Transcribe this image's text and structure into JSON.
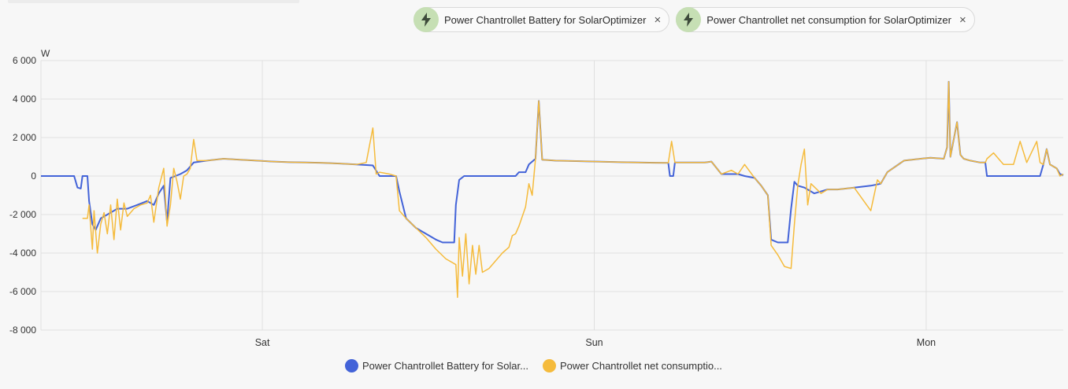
{
  "chips": [
    {
      "label": "Power Chantrollet Battery for SolarOptimizer",
      "icon": "lightning-bolt-icon"
    },
    {
      "label": "Power Chantrollet net consumption for SolarOptimizer",
      "icon": "lightning-bolt-icon"
    }
  ],
  "close_symbol": "×",
  "legend": [
    {
      "label": "Power Chantrollet Battery for Solar...",
      "color": "#4363d8"
    },
    {
      "label": "Power Chantrollet net consumptio...",
      "color": "#f5bb3c"
    }
  ],
  "chart_data": {
    "type": "line",
    "ylabel": "W",
    "ylim": [
      -8000,
      6000
    ],
    "yticks": [
      6000,
      4000,
      2000,
      0,
      -2000,
      -4000,
      -6000,
      -8000
    ],
    "ytick_labels": [
      "6 000",
      "4 000",
      "2 000",
      "0",
      "-2 000",
      "-4 000",
      "-6 000",
      "-8 000"
    ],
    "xlim": [
      0,
      3.08
    ],
    "xticks": [
      {
        "value": 0.667,
        "label": "Sat"
      },
      {
        "value": 1.667,
        "label": "Sun"
      },
      {
        "value": 2.667,
        "label": "Mon"
      }
    ],
    "x_units": "days from Friday 00:00",
    "grid": true,
    "series": [
      {
        "name": "Power Chantrollet Battery for SolarOptimizer",
        "color": "#4363d8",
        "points": [
          [
            0.0,
            0
          ],
          [
            0.1,
            0
          ],
          [
            0.11,
            -600
          ],
          [
            0.12,
            -650
          ],
          [
            0.125,
            0
          ],
          [
            0.14,
            0
          ],
          [
            0.145,
            -1300
          ],
          [
            0.155,
            -2500
          ],
          [
            0.165,
            -2800
          ],
          [
            0.18,
            -2200
          ],
          [
            0.2,
            -2000
          ],
          [
            0.23,
            -1700
          ],
          [
            0.26,
            -1700
          ],
          [
            0.29,
            -1500
          ],
          [
            0.32,
            -1300
          ],
          [
            0.34,
            -1500
          ],
          [
            0.355,
            -900
          ],
          [
            0.37,
            -500
          ],
          [
            0.38,
            -2400
          ],
          [
            0.39,
            -100
          ],
          [
            0.42,
            100
          ],
          [
            0.44,
            300
          ],
          [
            0.46,
            700
          ],
          [
            0.5,
            800
          ],
          [
            0.55,
            900
          ],
          [
            0.6,
            850
          ],
          [
            0.65,
            800
          ],
          [
            0.7,
            750
          ],
          [
            0.75,
            720
          ],
          [
            0.8,
            700
          ],
          [
            0.85,
            680
          ],
          [
            0.9,
            650
          ],
          [
            0.95,
            600
          ],
          [
            1.0,
            550
          ],
          [
            1.02,
            0
          ],
          [
            1.07,
            0
          ],
          [
            1.08,
            -800
          ],
          [
            1.1,
            -2200
          ],
          [
            1.13,
            -2700
          ],
          [
            1.16,
            -3000
          ],
          [
            1.19,
            -3300
          ],
          [
            1.21,
            -3450
          ],
          [
            1.245,
            -3450
          ],
          [
            1.25,
            -1500
          ],
          [
            1.26,
            -200
          ],
          [
            1.275,
            0
          ],
          [
            1.4,
            0
          ],
          [
            1.43,
            0
          ],
          [
            1.44,
            200
          ],
          [
            1.46,
            200
          ],
          [
            1.47,
            600
          ],
          [
            1.49,
            900
          ],
          [
            1.5,
            3900
          ],
          [
            1.51,
            850
          ],
          [
            1.55,
            800
          ],
          [
            1.6,
            780
          ],
          [
            1.65,
            760
          ],
          [
            1.7,
            740
          ],
          [
            1.75,
            720
          ],
          [
            1.8,
            700
          ],
          [
            1.85,
            690
          ],
          [
            1.89,
            680
          ],
          [
            1.895,
            0
          ],
          [
            1.905,
            0
          ],
          [
            1.91,
            700
          ],
          [
            1.95,
            700
          ],
          [
            2.0,
            700
          ],
          [
            2.02,
            750
          ],
          [
            2.05,
            100
          ],
          [
            2.1,
            100
          ],
          [
            2.12,
            0
          ],
          [
            2.15,
            -100
          ],
          [
            2.17,
            -500
          ],
          [
            2.19,
            -1000
          ],
          [
            2.2,
            -3300
          ],
          [
            2.22,
            -3450
          ],
          [
            2.25,
            -3450
          ],
          [
            2.26,
            -1700
          ],
          [
            2.27,
            -300
          ],
          [
            2.28,
            -500
          ],
          [
            2.3,
            -600
          ],
          [
            2.33,
            -900
          ],
          [
            2.37,
            -700
          ],
          [
            2.4,
            -700
          ],
          [
            2.45,
            -600
          ],
          [
            2.5,
            -500
          ],
          [
            2.53,
            -400
          ],
          [
            2.55,
            200
          ],
          [
            2.6,
            800
          ],
          [
            2.65,
            900
          ],
          [
            2.68,
            950
          ],
          [
            2.72,
            900
          ],
          [
            2.73,
            1500
          ],
          [
            2.735,
            4900
          ],
          [
            2.74,
            1000
          ],
          [
            2.76,
            2800
          ],
          [
            2.77,
            1100
          ],
          [
            2.78,
            900
          ],
          [
            2.8,
            800
          ],
          [
            2.83,
            700
          ],
          [
            2.845,
            700
          ],
          [
            2.85,
            0
          ],
          [
            2.9,
            0
          ],
          [
            2.95,
            0
          ],
          [
            3.0,
            0
          ],
          [
            3.01,
            0
          ],
          [
            3.02,
            600
          ],
          [
            3.03,
            1400
          ],
          [
            3.04,
            600
          ],
          [
            3.06,
            400
          ],
          [
            3.07,
            100
          ],
          [
            3.08,
            50
          ]
        ]
      },
      {
        "name": "Power Chantrollet net consumption for SolarOptimizer",
        "color": "#f5bb3c",
        "points": [
          [
            0.125,
            -2200
          ],
          [
            0.14,
            -2200
          ],
          [
            0.145,
            -1500
          ],
          [
            0.155,
            -3800
          ],
          [
            0.16,
            -1800
          ],
          [
            0.17,
            -4000
          ],
          [
            0.18,
            -2500
          ],
          [
            0.19,
            -1900
          ],
          [
            0.2,
            -3000
          ],
          [
            0.21,
            -1500
          ],
          [
            0.22,
            -3300
          ],
          [
            0.23,
            -1200
          ],
          [
            0.24,
            -2800
          ],
          [
            0.25,
            -1400
          ],
          [
            0.26,
            -2100
          ],
          [
            0.28,
            -1700
          ],
          [
            0.3,
            -1500
          ],
          [
            0.32,
            -1400
          ],
          [
            0.33,
            -1000
          ],
          [
            0.34,
            -2400
          ],
          [
            0.355,
            -600
          ],
          [
            0.37,
            400
          ],
          [
            0.38,
            -2600
          ],
          [
            0.39,
            -1500
          ],
          [
            0.4,
            400
          ],
          [
            0.41,
            -300
          ],
          [
            0.42,
            -1200
          ],
          [
            0.43,
            0
          ],
          [
            0.44,
            100
          ],
          [
            0.45,
            400
          ],
          [
            0.46,
            1900
          ],
          [
            0.47,
            800
          ],
          [
            0.5,
            800
          ],
          [
            0.55,
            900
          ],
          [
            0.6,
            850
          ],
          [
            0.65,
            800
          ],
          [
            0.7,
            750
          ],
          [
            0.75,
            720
          ],
          [
            0.8,
            700
          ],
          [
            0.85,
            680
          ],
          [
            0.9,
            650
          ],
          [
            0.95,
            600
          ],
          [
            0.98,
            700
          ],
          [
            1.0,
            2500
          ],
          [
            1.01,
            100
          ],
          [
            1.02,
            200
          ],
          [
            1.05,
            100
          ],
          [
            1.07,
            0
          ],
          [
            1.08,
            -1800
          ],
          [
            1.1,
            -2200
          ],
          [
            1.13,
            -2700
          ],
          [
            1.16,
            -3200
          ],
          [
            1.19,
            -3800
          ],
          [
            1.22,
            -4300
          ],
          [
            1.25,
            -4600
          ],
          [
            1.255,
            -6300
          ],
          [
            1.26,
            -3200
          ],
          [
            1.27,
            -5200
          ],
          [
            1.28,
            -3000
          ],
          [
            1.29,
            -5600
          ],
          [
            1.3,
            -3600
          ],
          [
            1.31,
            -5100
          ],
          [
            1.32,
            -3600
          ],
          [
            1.33,
            -5000
          ],
          [
            1.35,
            -4800
          ],
          [
            1.37,
            -4400
          ],
          [
            1.39,
            -4000
          ],
          [
            1.41,
            -3700
          ],
          [
            1.42,
            -3100
          ],
          [
            1.43,
            -3000
          ],
          [
            1.44,
            -2600
          ],
          [
            1.46,
            -1600
          ],
          [
            1.47,
            -400
          ],
          [
            1.48,
            -1000
          ],
          [
            1.49,
            900
          ],
          [
            1.5,
            3900
          ],
          [
            1.51,
            850
          ],
          [
            1.55,
            800
          ],
          [
            1.6,
            780
          ],
          [
            1.65,
            760
          ],
          [
            1.7,
            740
          ],
          [
            1.75,
            720
          ],
          [
            1.8,
            700
          ],
          [
            1.85,
            690
          ],
          [
            1.89,
            680
          ],
          [
            1.9,
            1800
          ],
          [
            1.91,
            700
          ],
          [
            1.95,
            700
          ],
          [
            2.0,
            700
          ],
          [
            2.02,
            750
          ],
          [
            2.05,
            100
          ],
          [
            2.08,
            300
          ],
          [
            2.1,
            100
          ],
          [
            2.12,
            600
          ],
          [
            2.15,
            -100
          ],
          [
            2.17,
            -500
          ],
          [
            2.19,
            -1000
          ],
          [
            2.2,
            -3600
          ],
          [
            2.22,
            -4100
          ],
          [
            2.24,
            -4700
          ],
          [
            2.26,
            -4800
          ],
          [
            2.27,
            -2500
          ],
          [
            2.28,
            -500
          ],
          [
            2.29,
            600
          ],
          [
            2.3,
            1400
          ],
          [
            2.31,
            -1500
          ],
          [
            2.32,
            -400
          ],
          [
            2.35,
            -900
          ],
          [
            2.37,
            -700
          ],
          [
            2.4,
            -700
          ],
          [
            2.45,
            -600
          ],
          [
            2.5,
            -1800
          ],
          [
            2.52,
            -200
          ],
          [
            2.53,
            -400
          ],
          [
            2.55,
            200
          ],
          [
            2.6,
            800
          ],
          [
            2.65,
            900
          ],
          [
            2.68,
            950
          ],
          [
            2.72,
            900
          ],
          [
            2.73,
            1500
          ],
          [
            2.735,
            4900
          ],
          [
            2.74,
            1000
          ],
          [
            2.76,
            2800
          ],
          [
            2.77,
            1100
          ],
          [
            2.78,
            900
          ],
          [
            2.8,
            800
          ],
          [
            2.83,
            700
          ],
          [
            2.845,
            700
          ],
          [
            2.85,
            900
          ],
          [
            2.87,
            1200
          ],
          [
            2.9,
            600
          ],
          [
            2.93,
            600
          ],
          [
            2.95,
            1800
          ],
          [
            2.97,
            700
          ],
          [
            3.0,
            1800
          ],
          [
            3.01,
            700
          ],
          [
            3.02,
            600
          ],
          [
            3.03,
            1400
          ],
          [
            3.04,
            600
          ],
          [
            3.06,
            400
          ],
          [
            3.07,
            0
          ],
          [
            3.08,
            100
          ]
        ]
      }
    ]
  }
}
